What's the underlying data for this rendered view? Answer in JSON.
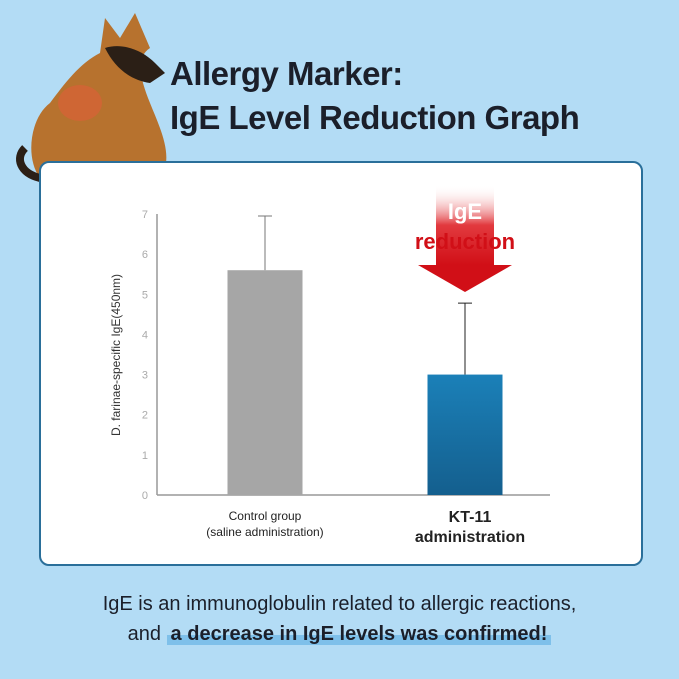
{
  "title": {
    "line1": "Allergy Marker:",
    "line2": "IgE Level Reduction Graph"
  },
  "chart_data": {
    "type": "bar",
    "ylabel": "D. farinae-specific IgE(450nm)",
    "ylim": [
      0,
      7
    ],
    "yticks": [
      "0",
      "1",
      "2",
      "3",
      "4",
      "5",
      "6",
      "7"
    ],
    "categories": [
      "Control group\n(saline administration)",
      "KT-11\nadministration"
    ],
    "category_lines": [
      [
        "Control group",
        "(saline administration)"
      ],
      [
        "KT-11",
        "administration"
      ]
    ],
    "values": [
      5.6,
      3.0
    ],
    "error_upper": [
      6.95,
      4.78
    ],
    "colors": [
      "#a6a6a6",
      "#1a76aa"
    ],
    "annotation": {
      "line1": "IgE",
      "line2": "reduction",
      "color": "#d9141b"
    },
    "grid": false
  },
  "footer": {
    "line1": "IgE is an immunoglobulin related to allergic reactions,",
    "line2_plain": "and ",
    "line2_highlight": "a decrease in IgE levels was confirmed!"
  }
}
